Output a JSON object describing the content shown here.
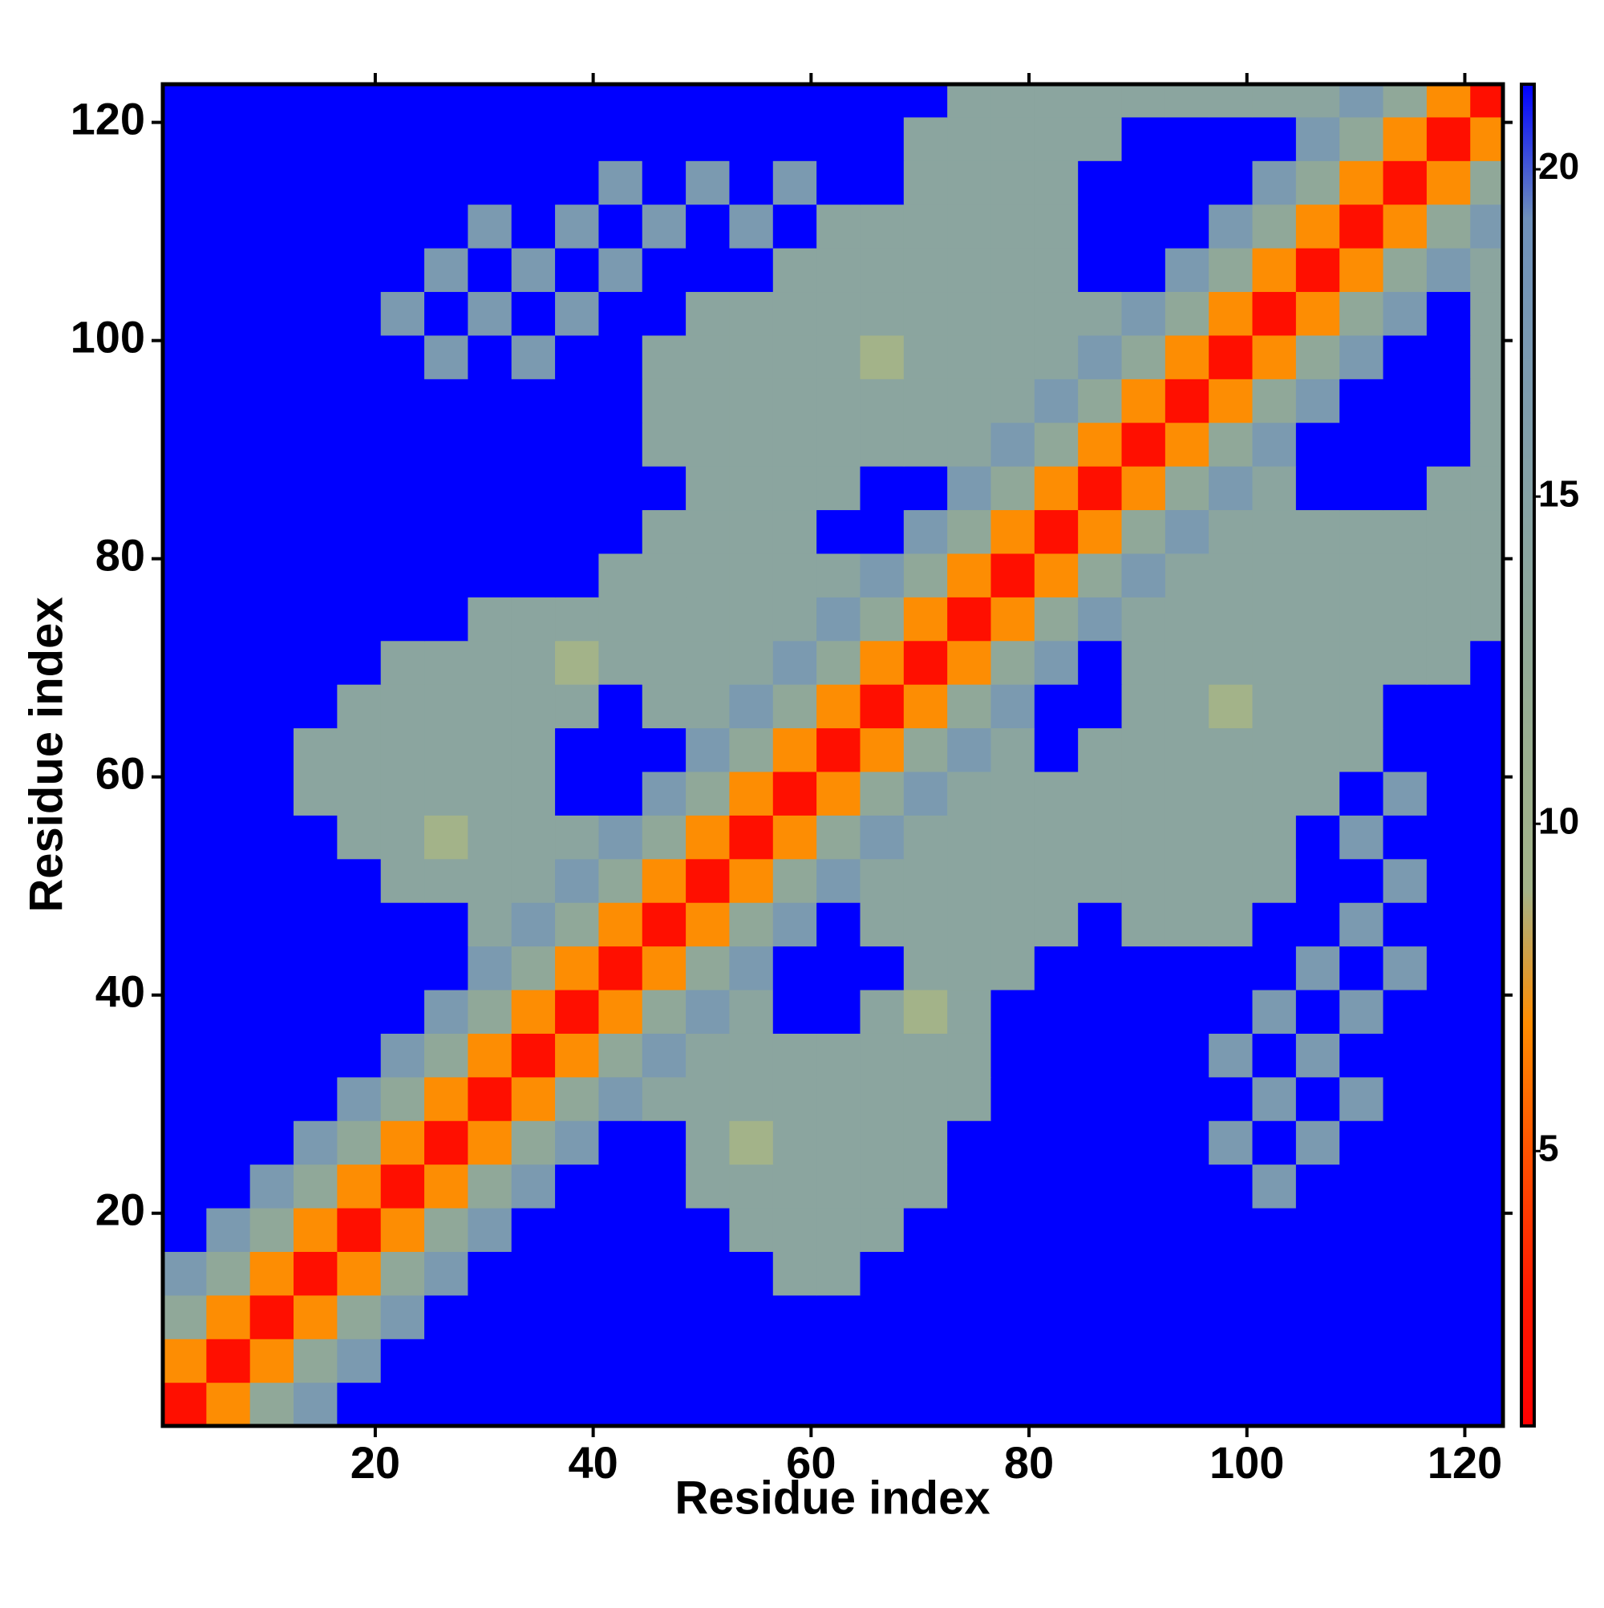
{
  "chart_data": {
    "type": "heatmap",
    "xlabel": "Residue index",
    "ylabel": "Residue index",
    "x": [
      2.5,
      6.5,
      10.5,
      14.5,
      18.5,
      22.5,
      26.5,
      30.5,
      34.5,
      38.5,
      42.5,
      46.5,
      50.5,
      54.5,
      58.5,
      62.5,
      66.5,
      70.5,
      74.5,
      78.5,
      82.5,
      86.5,
      90.5,
      94.5,
      98.5,
      102.5,
      106.5,
      110.5,
      114.5,
      118.5,
      122.5
    ],
    "y": [
      2.5,
      6.5,
      10.5,
      14.5,
      18.5,
      22.5,
      26.5,
      30.5,
      34.5,
      38.5,
      42.5,
      46.5,
      50.5,
      54.5,
      58.5,
      62.5,
      66.5,
      70.5,
      74.5,
      78.5,
      82.5,
      86.5,
      90.5,
      94.5,
      98.5,
      102.5,
      106.5,
      110.5,
      114.5,
      118.5,
      122.5
    ],
    "values": [
      [
        2,
        7,
        13,
        17,
        21.3,
        21.3,
        21.3,
        21.3,
        21.3,
        21.3,
        21.3,
        21.3,
        21.3,
        21.3,
        21.3,
        21.3,
        21.3,
        21.3,
        21.3,
        21.3,
        21.3,
        21.3,
        21.3,
        21.3,
        21.3,
        21.3,
        21.3,
        21.3,
        21.3,
        21.3,
        21.3
      ],
      [
        7,
        2,
        7,
        13,
        17,
        21.3,
        21.3,
        21.3,
        21.3,
        21.3,
        21.3,
        21.3,
        21.3,
        21.3,
        21.3,
        21.3,
        21.3,
        21.3,
        21.3,
        21.3,
        21.3,
        21.3,
        21.3,
        21.3,
        21.3,
        21.3,
        21.3,
        21.3,
        21.3,
        21.3,
        21.3
      ],
      [
        13,
        7,
        2,
        7,
        13,
        17,
        21.3,
        21.3,
        21.3,
        21.3,
        21.3,
        21.3,
        21.3,
        21.3,
        21.3,
        21.3,
        21.3,
        21.3,
        21.3,
        21.3,
        21.3,
        21.3,
        21.3,
        21.3,
        21.3,
        21.3,
        21.3,
        21.3,
        21.3,
        21.3,
        21.3
      ],
      [
        17,
        13,
        7,
        2,
        7,
        13,
        17,
        21.3,
        21.3,
        21.3,
        21.3,
        21.3,
        21.3,
        21.3,
        14,
        14,
        21.3,
        21.3,
        21.3,
        21.3,
        21.3,
        21.3,
        21.3,
        21.3,
        21.3,
        21.3,
        21.3,
        21.3,
        21.3,
        21.3,
        21.3
      ],
      [
        21.3,
        17,
        13,
        7,
        2,
        7,
        13,
        17,
        21.3,
        21.3,
        21.3,
        21.3,
        21.3,
        14,
        14,
        14,
        14,
        21.3,
        21.3,
        21.3,
        21.3,
        21.3,
        21.3,
        21.3,
        21.3,
        21.3,
        21.3,
        21.3,
        21.3,
        21.3,
        21.3
      ],
      [
        21.3,
        21.3,
        17,
        13,
        7,
        2,
        7,
        13,
        17,
        21.3,
        21.3,
        21.3,
        14,
        14,
        14,
        14,
        14,
        14,
        21.3,
        21.3,
        21.3,
        21.3,
        21.3,
        21.3,
        21.3,
        17,
        21.3,
        21.3,
        21.3,
        21.3,
        21.3
      ],
      [
        21.3,
        21.3,
        21.3,
        17,
        13,
        7,
        2,
        7,
        13,
        17,
        21.3,
        21.3,
        14,
        9,
        14,
        14,
        14,
        14,
        21.3,
        21.3,
        21.3,
        21.3,
        21.3,
        21.3,
        17,
        21.3,
        17,
        21.3,
        21.3,
        21.3,
        21.3
      ],
      [
        21.3,
        21.3,
        21.3,
        21.3,
        17,
        13,
        7,
        2,
        7,
        13,
        17,
        14,
        14,
        14,
        14,
        14,
        14,
        14,
        14,
        21.3,
        21.3,
        21.3,
        21.3,
        21.3,
        21.3,
        17,
        21.3,
        17,
        21.3,
        21.3,
        21.3
      ],
      [
        21.3,
        21.3,
        21.3,
        21.3,
        21.3,
        17,
        13,
        7,
        2,
        7,
        13,
        17,
        14,
        14,
        14,
        14,
        14,
        14,
        14,
        21.3,
        21.3,
        21.3,
        21.3,
        21.3,
        17,
        21.3,
        17,
        21.3,
        21.3,
        21.3,
        21.3
      ],
      [
        21.3,
        21.3,
        21.3,
        21.3,
        21.3,
        21.3,
        17,
        13,
        7,
        2,
        7,
        13,
        17,
        14,
        21.3,
        21.3,
        14,
        9,
        14,
        21.3,
        21.3,
        21.3,
        21.3,
        21.3,
        21.3,
        17,
        21.3,
        17,
        21.3,
        21.3,
        21.3
      ],
      [
        21.3,
        21.3,
        21.3,
        21.3,
        21.3,
        21.3,
        21.3,
        17,
        13,
        7,
        2,
        7,
        13,
        17,
        21.3,
        21.3,
        21.3,
        14,
        14,
        14,
        21.3,
        21.3,
        21.3,
        21.3,
        21.3,
        21.3,
        17,
        21.3,
        17,
        21.3,
        21.3
      ],
      [
        21.3,
        21.3,
        21.3,
        21.3,
        21.3,
        21.3,
        21.3,
        14,
        17,
        13,
        7,
        2,
        7,
        13,
        17,
        21.3,
        14,
        14,
        14,
        14,
        14,
        21.3,
        14,
        14,
        14,
        21.3,
        21.3,
        17,
        21.3,
        21.3,
        21.3
      ],
      [
        21.3,
        21.3,
        21.3,
        21.3,
        21.3,
        14,
        14,
        14,
        14,
        17,
        13,
        7,
        2,
        7,
        13,
        17,
        14,
        14,
        14,
        14,
        14,
        14,
        14,
        14,
        14,
        14,
        21.3,
        21.3,
        17,
        21.3,
        21.3
      ],
      [
        21.3,
        21.3,
        21.3,
        21.3,
        14,
        14,
        9,
        14,
        14,
        14,
        17,
        13,
        7,
        2,
        7,
        13,
        17,
        14,
        14,
        14,
        14,
        14,
        14,
        14,
        14,
        14,
        21.3,
        17,
        21.3,
        21.3,
        21.3
      ],
      [
        21.3,
        21.3,
        21.3,
        14,
        14,
        14,
        14,
        14,
        14,
        21.3,
        21.3,
        17,
        13,
        7,
        2,
        7,
        13,
        17,
        14,
        14,
        14,
        14,
        14,
        14,
        14,
        14,
        14,
        21.3,
        17,
        21.3,
        21.3
      ],
      [
        21.3,
        21.3,
        21.3,
        14,
        14,
        14,
        14,
        14,
        14,
        21.3,
        21.3,
        21.3,
        17,
        13,
        7,
        2,
        7,
        13,
        17,
        14,
        21.3,
        14,
        14,
        14,
        14,
        14,
        14,
        14,
        21.3,
        21.3,
        21.3
      ],
      [
        21.3,
        21.3,
        21.3,
        21.3,
        14,
        14,
        14,
        14,
        14,
        14,
        21.3,
        14,
        14,
        17,
        13,
        7,
        2,
        7,
        13,
        17,
        21.3,
        21.3,
        14,
        14,
        9,
        14,
        14,
        14,
        21.3,
        21.3,
        21.3
      ],
      [
        21.3,
        21.3,
        21.3,
        21.3,
        21.3,
        14,
        14,
        14,
        14,
        9,
        14,
        14,
        14,
        14,
        17,
        13,
        7,
        2,
        7,
        13,
        17,
        21.3,
        14,
        14,
        14,
        14,
        14,
        14,
        14,
        14,
        21.3
      ],
      [
        21.3,
        21.3,
        21.3,
        21.3,
        21.3,
        21.3,
        21.3,
        14,
        14,
        14,
        14,
        14,
        14,
        14,
        14,
        17,
        13,
        7,
        2,
        7,
        13,
        17,
        14,
        14,
        14,
        14,
        14,
        14,
        14,
        14,
        14
      ],
      [
        21.3,
        21.3,
        21.3,
        21.3,
        21.3,
        21.3,
        21.3,
        21.3,
        21.3,
        21.3,
        14,
        14,
        14,
        14,
        14,
        14,
        17,
        13,
        7,
        2,
        7,
        13,
        17,
        14,
        14,
        14,
        14,
        14,
        14,
        14,
        14
      ],
      [
        21.3,
        21.3,
        21.3,
        21.3,
        21.3,
        21.3,
        21.3,
        21.3,
        21.3,
        21.3,
        21.3,
        14,
        14,
        14,
        14,
        21.3,
        21.3,
        17,
        13,
        7,
        2,
        7,
        13,
        17,
        14,
        14,
        14,
        14,
        14,
        14,
        14
      ],
      [
        21.3,
        21.3,
        21.3,
        21.3,
        21.3,
        21.3,
        21.3,
        21.3,
        21.3,
        21.3,
        21.3,
        21.3,
        14,
        14,
        14,
        14,
        21.3,
        21.3,
        17,
        13,
        7,
        2,
        7,
        13,
        17,
        14,
        21.3,
        21.3,
        21.3,
        14,
        14
      ],
      [
        21.3,
        21.3,
        21.3,
        21.3,
        21.3,
        21.3,
        21.3,
        21.3,
        21.3,
        21.3,
        21.3,
        14,
        14,
        14,
        14,
        14,
        14,
        14,
        14,
        17,
        13,
        7,
        2,
        7,
        13,
        17,
        21.3,
        21.3,
        21.3,
        21.3,
        14
      ],
      [
        21.3,
        21.3,
        21.3,
        21.3,
        21.3,
        21.3,
        21.3,
        21.3,
        21.3,
        21.3,
        21.3,
        14,
        14,
        14,
        14,
        14,
        14,
        14,
        14,
        14,
        17,
        13,
        7,
        2,
        7,
        13,
        17,
        21.3,
        21.3,
        21.3,
        14
      ],
      [
        21.3,
        21.3,
        21.3,
        21.3,
        21.3,
        21.3,
        17,
        21.3,
        17,
        21.3,
        21.3,
        14,
        14,
        14,
        14,
        14,
        9,
        14,
        14,
        14,
        14,
        17,
        13,
        7,
        2,
        7,
        13,
        17,
        21.3,
        21.3,
        14
      ],
      [
        21.3,
        21.3,
        21.3,
        21.3,
        21.3,
        17,
        21.3,
        17,
        21.3,
        17,
        21.3,
        21.3,
        14,
        14,
        14,
        14,
        14,
        14,
        14,
        14,
        14,
        14,
        17,
        13,
        7,
        2,
        7,
        13,
        17,
        21.3,
        14
      ],
      [
        21.3,
        21.3,
        21.3,
        21.3,
        21.3,
        21.3,
        17,
        21.3,
        17,
        21.3,
        17,
        21.3,
        21.3,
        21.3,
        14,
        14,
        14,
        14,
        14,
        14,
        14,
        21.3,
        21.3,
        17,
        13,
        7,
        2,
        7,
        13,
        17,
        14
      ],
      [
        21.3,
        21.3,
        21.3,
        21.3,
        21.3,
        21.3,
        21.3,
        17,
        21.3,
        17,
        21.3,
        17,
        21.3,
        17,
        21.3,
        14,
        14,
        14,
        14,
        14,
        14,
        21.3,
        21.3,
        21.3,
        17,
        13,
        7,
        2,
        7,
        13,
        17
      ],
      [
        21.3,
        21.3,
        21.3,
        21.3,
        21.3,
        21.3,
        21.3,
        21.3,
        21.3,
        21.3,
        17,
        21.3,
        17,
        21.3,
        17,
        21.3,
        21.3,
        14,
        14,
        14,
        14,
        21.3,
        21.3,
        21.3,
        21.3,
        17,
        13,
        7,
        2,
        7,
        13
      ],
      [
        21.3,
        21.3,
        21.3,
        21.3,
        21.3,
        21.3,
        21.3,
        21.3,
        21.3,
        21.3,
        21.3,
        21.3,
        21.3,
        21.3,
        21.3,
        21.3,
        21.3,
        14,
        14,
        14,
        14,
        14,
        21.3,
        21.3,
        21.3,
        21.3,
        17,
        13,
        7,
        2,
        7
      ],
      [
        21.3,
        21.3,
        21.3,
        21.3,
        21.3,
        21.3,
        21.3,
        21.3,
        21.3,
        21.3,
        21.3,
        21.3,
        21.3,
        21.3,
        21.3,
        21.3,
        21.3,
        21.3,
        14,
        14,
        14,
        14,
        14,
        14,
        14,
        14,
        14,
        17,
        13,
        7,
        2
      ]
    ],
    "xlim": [
      0.5,
      123.5
    ],
    "ylim": [
      0.5,
      123.5
    ],
    "xticks": [
      20,
      40,
      60,
      80,
      100,
      120
    ],
    "yticks": [
      20,
      40,
      60,
      80,
      100,
      120
    ],
    "colorbar": {
      "lim": [
        0.8,
        21.3
      ],
      "ticks": [
        5,
        10,
        15,
        20
      ],
      "colors": [
        "#ff0000",
        "#ff1a00",
        "#ff5000",
        "#ff8c00",
        "#a3b389",
        "#9aae8f",
        "#8fa89a",
        "#85a1a6",
        "#7a99b1",
        "#6e90bb",
        "#0000ff"
      ]
    }
  }
}
